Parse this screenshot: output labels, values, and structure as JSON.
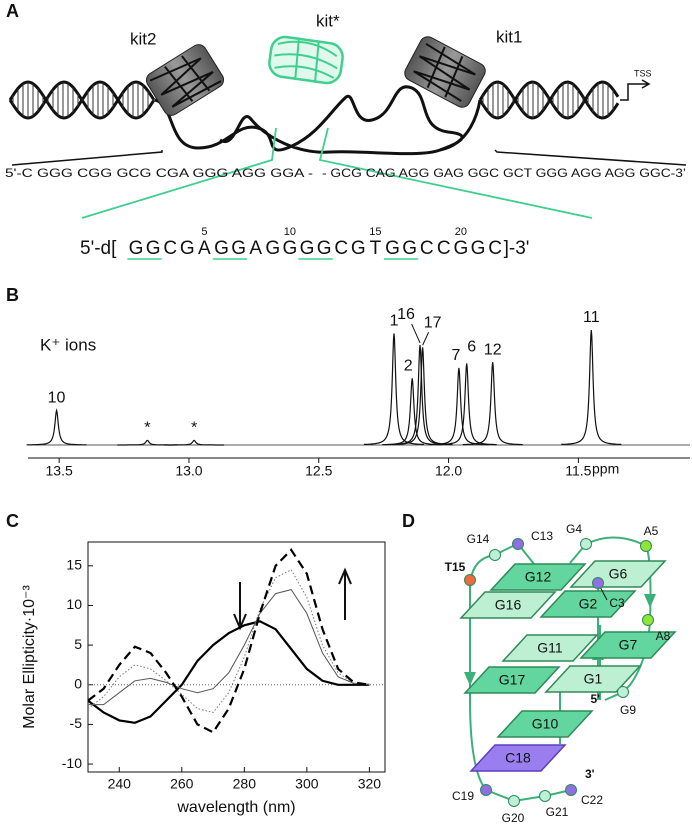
{
  "figure_labels": [
    "A",
    "B",
    "C",
    "D"
  ],
  "panel_a": {
    "elements": [
      "kit2",
      "kit*",
      "kit1"
    ],
    "tss": "TSS",
    "color": "#3fcf8e",
    "promoter_5": "5'-C GGG CGG GCG CGA GGG AGG GGA -",
    "promoter_3": "- GCG CAG AGG GAG GGC GCT GGG AGG AGG GGC-3’",
    "oligo_prefix": "5'-d[",
    "sequence": [
      "G",
      "G",
      "C",
      "G",
      "A",
      "G",
      "G",
      "A",
      "G",
      "G",
      "G",
      "G",
      "C",
      "G",
      "T",
      "G",
      "G",
      "C",
      "C",
      "G",
      "G",
      "C"
    ],
    "oligo_suffix": "]-3'",
    "underlined": [
      1,
      2,
      6,
      7,
      11,
      12,
      16,
      17
    ],
    "position_labels": [
      5,
      10,
      15,
      20
    ]
  },
  "chart_data": [
    {
      "type": "spectrum",
      "annotation": "K⁺ ions",
      "xlabel": "ppm",
      "xlim": [
        13.62,
        11.07
      ],
      "xticks": [
        13.5,
        {
          "value": 13,
          "label": "13.0"
        },
        12.5,
        {
          "value": 12,
          "label": "12.0"
        },
        11.5
      ],
      "x": [
        13.51,
        13.16,
        12.98,
        12.21,
        12.14,
        12.11,
        12.1,
        11.96,
        11.93,
        11.83,
        11.45
      ],
      "values": [
        30,
        4,
        4,
        97,
        58,
        87,
        85,
        67,
        71,
        72,
        100
      ],
      "labels": [
        "10",
        "*",
        "*",
        "1",
        "2",
        "16",
        "17",
        "7",
        "6",
        "12",
        "11"
      ]
    },
    {
      "type": "line",
      "xlabel": "wavelength (nm)",
      "ylabel": "Molar Ellipticity·10⁻³",
      "x": [
        230,
        235,
        240,
        245,
        250,
        255,
        260,
        265,
        270,
        275,
        280,
        285,
        290,
        295,
        300,
        305,
        310,
        315,
        320
      ],
      "series": [
        {
          "color": "#000000",
          "style": "solid",
          "width": 2.2,
          "values": [
            -2,
            -3.5,
            -4.5,
            -4.8,
            -4,
            -2,
            0,
            3,
            5,
            6.5,
            7.5,
            8,
            7,
            4.5,
            2,
            0.5,
            0,
            0,
            0
          ]
        },
        {
          "color": "#555555",
          "style": "solid",
          "width": 1,
          "values": [
            -2.5,
            -2.5,
            -1,
            0.5,
            0.8,
            0.3,
            -0.5,
            -1,
            -0.5,
            1.5,
            5,
            9,
            11.5,
            12,
            9,
            4,
            1,
            0.2,
            0
          ]
        },
        {
          "color": "#777777",
          "style": "dotted",
          "width": 1,
          "values": [
            -3,
            -1.5,
            1,
            2.5,
            2,
            0.5,
            -1.2,
            -3,
            -3.5,
            -1,
            3.5,
            9.5,
            13.5,
            14.5,
            11,
            5,
            1.5,
            0.2,
            0
          ]
        },
        {
          "color": "#000000",
          "style": "dashed",
          "width": 2.2,
          "values": [
            -2,
            -0.5,
            2.5,
            4.8,
            4,
            1.5,
            -1.5,
            -5,
            -6,
            -3,
            2,
            9,
            15,
            17,
            14,
            7,
            2,
            0.3,
            0
          ]
        }
      ],
      "xlim": [
        230,
        325
      ],
      "ylim": [
        -11,
        18
      ],
      "xticks": [
        240,
        260,
        280,
        300,
        320
      ],
      "yticks": [
        -10,
        -5,
        0,
        5,
        10,
        15
      ]
    }
  ],
  "panel_d": {
    "quartets": [
      {
        "label": "G12",
        "color": "#63d69f"
      },
      {
        "label": "G6",
        "color": "#bdf0d3"
      },
      {
        "label": "G16",
        "color": "#bdf0d3"
      },
      {
        "label": "G2",
        "color": "#63d69f"
      },
      {
        "label": "G11",
        "color": "#bdf0d3"
      },
      {
        "label": "G7",
        "color": "#63d69f"
      },
      {
        "label": "G17",
        "color": "#63d69f"
      },
      {
        "label": "G1",
        "color": "#bdf0d3"
      },
      {
        "label": "G10",
        "color": "#63d69f"
      },
      {
        "label": "C18",
        "color": "#9a7ef0"
      }
    ],
    "residues": [
      {
        "label": "G14",
        "color": "#bdf0d8"
      },
      {
        "label": "C13",
        "color": "#8f6ee6"
      },
      {
        "label": "G4",
        "color": "#bdf0d8"
      },
      {
        "label": "A5",
        "color": "#8ee63a"
      },
      {
        "label": "T15",
        "color": "#f06a3b"
      },
      {
        "label": "C3",
        "color": "#8f6ee6"
      },
      {
        "label": "A8",
        "color": "#8ee63a"
      },
      {
        "label": "G9",
        "color": "#bdf0d8"
      },
      {
        "label": "C19",
        "color": "#8f6ee6"
      },
      {
        "label": "G20",
        "color": "#bdf0d8"
      },
      {
        "label": "G21",
        "color": "#bdf0d8"
      },
      {
        "label": "C22",
        "color": "#8f6ee6"
      }
    ],
    "five_prime": "5'",
    "three_prime": "3'",
    "line_color": "#3bb17a"
  }
}
